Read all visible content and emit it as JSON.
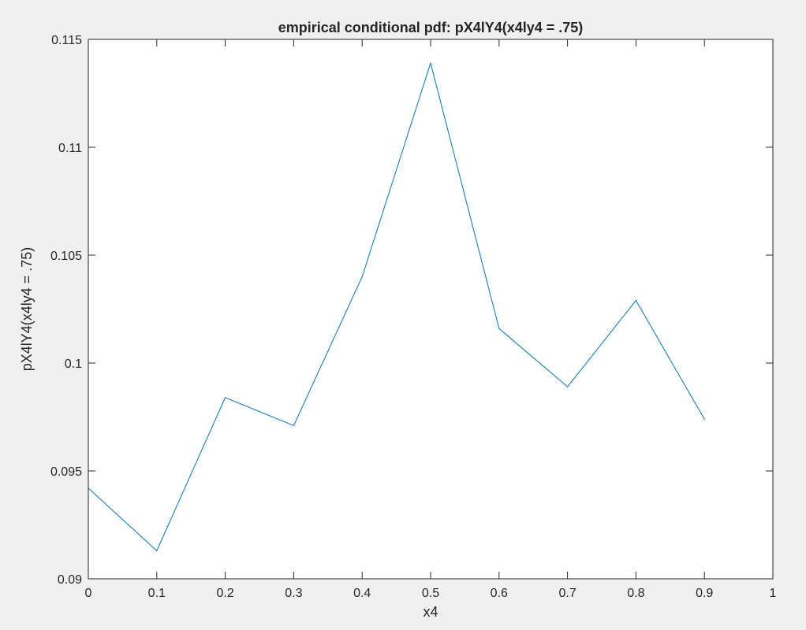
{
  "chart_data": {
    "type": "line",
    "title": "empirical conditional pdf: pX4lY4(x4ly4 = .75)",
    "xlabel": "x4",
    "ylabel": "pX4lY4(x4ly4 = .75)",
    "xlim": [
      0,
      1
    ],
    "ylim": [
      0.09,
      0.115
    ],
    "xticks": [
      0,
      0.1,
      0.2,
      0.3,
      0.4,
      0.5,
      0.6,
      0.7,
      0.8,
      0.9,
      1
    ],
    "xtick_labels": [
      "0",
      "0.1",
      "0.2",
      "0.3",
      "0.4",
      "0.5",
      "0.6",
      "0.7",
      "0.8",
      "0.9",
      "1"
    ],
    "yticks": [
      0.09,
      0.095,
      0.1,
      0.105,
      0.11,
      0.115
    ],
    "ytick_labels": [
      "0.09",
      "0.095",
      "0.1",
      "0.105",
      "0.11",
      "0.115"
    ],
    "grid": false,
    "legend": "none",
    "colors": {
      "line": "#0072bd",
      "axes": "#262626",
      "plot_bg": "#ffffff",
      "figure_bg": "#f0f0f0"
    },
    "series": [
      {
        "x": [
          0,
          0.1,
          0.2,
          0.3,
          0.4,
          0.5,
          0.6,
          0.7,
          0.8,
          0.9
        ],
        "values": [
          0.0942,
          0.0913,
          0.0984,
          0.0971,
          0.104,
          0.1139,
          0.1016,
          0.0989,
          0.1029,
          0.0974
        ]
      }
    ]
  }
}
